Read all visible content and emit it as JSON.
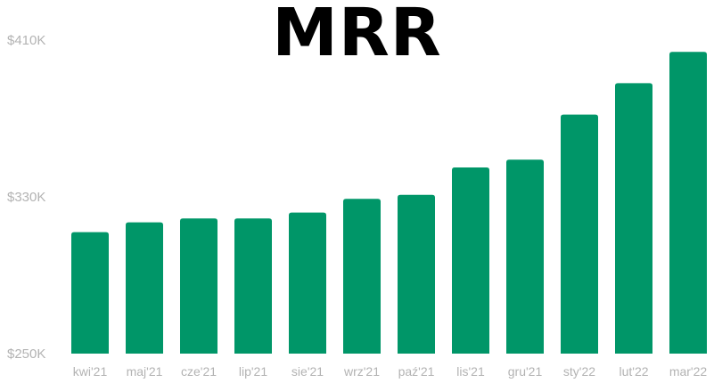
{
  "chart_data": {
    "type": "bar",
    "title": "MRR",
    "xlabel": "",
    "ylabel": "",
    "categories": [
      "kwi'21",
      "maj'21",
      "cze'21",
      "lip'21",
      "sie'21",
      "wrz'21",
      "paź'21",
      "lis'21",
      "gru'21",
      "sty'22",
      "lut'22",
      "mar'22"
    ],
    "values": [
      312,
      317,
      319,
      319,
      322,
      329,
      331,
      345,
      349,
      372,
      388,
      404
    ],
    "value_unit": "K USD",
    "ylim": [
      250,
      410
    ],
    "yticks": [
      250,
      330,
      410
    ],
    "ytick_labels": [
      "$250K",
      "$330K",
      "$410K"
    ],
    "grid": false,
    "legend": "none",
    "bar_color": "#009668"
  }
}
